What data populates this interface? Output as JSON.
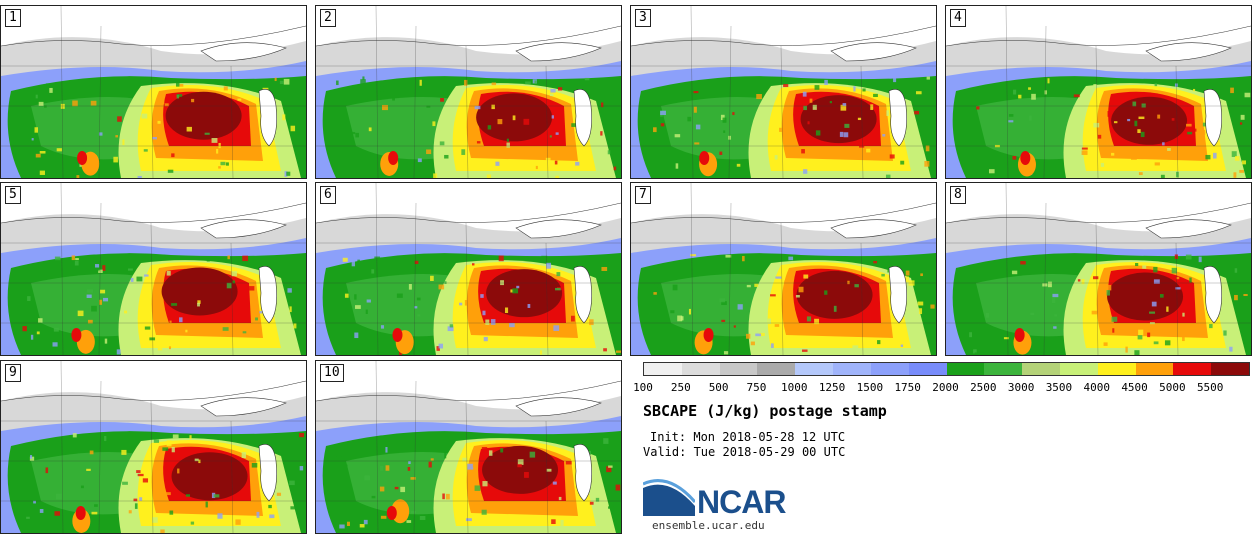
{
  "panels": [
    {
      "label": "1"
    },
    {
      "label": "2"
    },
    {
      "label": "3"
    },
    {
      "label": "4"
    },
    {
      "label": "5"
    },
    {
      "label": "6"
    },
    {
      "label": "7"
    },
    {
      "label": "8"
    },
    {
      "label": "9"
    },
    {
      "label": "10"
    }
  ],
  "colorbar": {
    "colors": [
      "#f0f0f0",
      "#dcdcdc",
      "#c8c8c8",
      "#aaaaaa",
      "#b4c8fa",
      "#a0b4fa",
      "#8ca0fa",
      "#788cfa",
      "#1aa01a",
      "#3cb43c",
      "#b4d278",
      "#c8f078",
      "#fff01e",
      "#ffa00a",
      "#e60a0a",
      "#8c0a0a"
    ],
    "ticks": [
      "100",
      "250",
      "500",
      "750",
      "1000",
      "1250",
      "1500",
      "1750",
      "2000",
      "2500",
      "3000",
      "3500",
      "4000",
      "4500",
      "5000",
      "5500"
    ]
  },
  "title": "SBCAPE (J/kg) postage stamp",
  "init": "Init: Mon 2018-05-28 12 UTC",
  "valid": "Valid: Tue 2018-05-29 00 UTC",
  "logo": {
    "name": "ncar-logo-icon",
    "text": "NCAR"
  },
  "url": "ensemble.ucar.edu"
}
